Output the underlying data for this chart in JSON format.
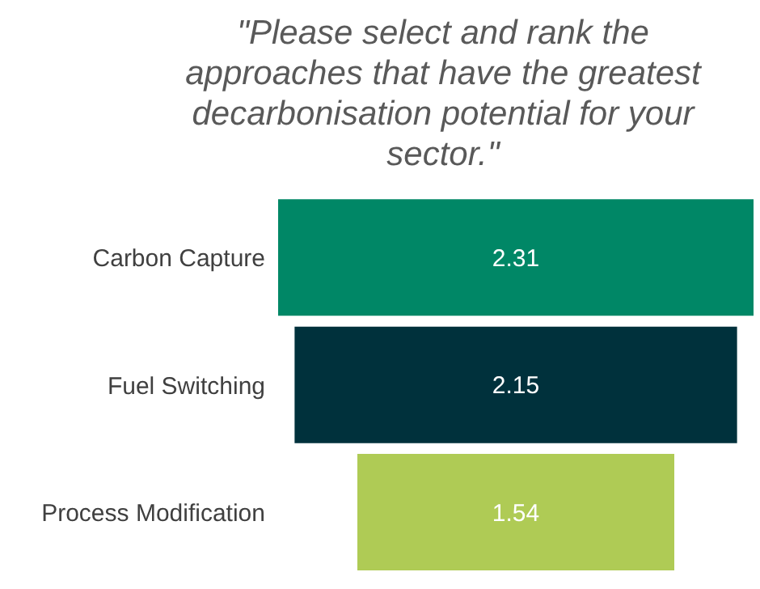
{
  "chart_data": {
    "type": "other",
    "data_labels": true,
    "title": "\"Please select and rank the approaches that have the greatest decarbonisation potential for your sector.\"",
    "categories": [
      "Carbon Capture",
      "Fuel Switching",
      "Process Modification"
    ],
    "values": [
      2.31,
      2.15,
      1.54
    ],
    "colors": [
      "#008766",
      "#00313c",
      "#afcb55"
    ]
  }
}
